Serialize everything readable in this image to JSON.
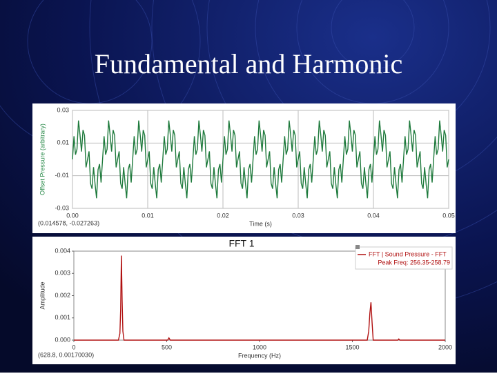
{
  "title": "Fundamental and Harmonic",
  "chart_data": [
    {
      "type": "line",
      "x_label": "Time (s)",
      "y_label": "Offset Pressure (arbitrary)",
      "status": "(0.014578, -0.027263)",
      "color": "#1e7a3c",
      "grid": true,
      "xlim": [
        0,
        0.05
      ],
      "ylim": [
        -0.03,
        0.03
      ],
      "xticks": [
        {
          "value": 0,
          "label": "0.00"
        },
        0.01,
        0.02,
        0.03,
        0.04,
        0.05
      ],
      "yticks": [
        -0.03,
        -0.01,
        0.01,
        0.03
      ],
      "x": [
        0,
        0.0002,
        0.0004,
        0.0006,
        0.0008,
        0.001,
        0.0012,
        0.0014,
        0.0016,
        0.0018,
        0.002,
        0.0022,
        0.0024,
        0.0026,
        0.0028,
        0.003,
        0.0032,
        0.0034,
        0.0036,
        0.0038,
        0.004,
        0.0042,
        0.0044,
        0.0046,
        0.0048,
        0.005,
        0.0052,
        0.0054,
        0.0056,
        0.0058,
        0.006,
        0.0062,
        0.0064,
        0.0066,
        0.0068,
        0.007,
        0.0072,
        0.0074,
        0.0076,
        0.0078,
        0.008,
        0.0082,
        0.0084,
        0.0086,
        0.0088,
        0.009,
        0.0092,
        0.0094,
        0.0096,
        0.0098,
        0.01,
        0.0102,
        0.0104,
        0.0106,
        0.0108,
        0.011,
        0.0112,
        0.0114,
        0.0116,
        0.0118,
        0.012,
        0.0122,
        0.0124,
        0.0126,
        0.0128,
        0.013,
        0.0132,
        0.0134,
        0.0136,
        0.0138,
        0.014,
        0.0142,
        0.0144,
        0.0146,
        0.0148,
        0.015,
        0.0152,
        0.0154,
        0.0156,
        0.0158,
        0.016,
        0.0162,
        0.0164,
        0.0166,
        0.0168,
        0.017,
        0.0172,
        0.0174,
        0.0176,
        0.0178,
        0.018,
        0.0182,
        0.0184,
        0.0186,
        0.0188,
        0.019,
        0.0192,
        0.0194,
        0.0196,
        0.0198,
        0.02,
        0.0202,
        0.0204,
        0.0206,
        0.0208,
        0.021,
        0.0212,
        0.0214,
        0.0216,
        0.0218,
        0.022,
        0.0222,
        0.0224,
        0.0226,
        0.0228,
        0.023,
        0.0232,
        0.0234,
        0.0236,
        0.0238,
        0.024,
        0.0242,
        0.0244,
        0.0246,
        0.0248,
        0.025,
        0.0252,
        0.0254,
        0.0256,
        0.0258,
        0.026,
        0.0262,
        0.0264,
        0.0266,
        0.0268,
        0.027,
        0.0272,
        0.0274,
        0.0276,
        0.0278,
        0.028,
        0.0282,
        0.0284,
        0.0286,
        0.0288,
        0.029,
        0.0292,
        0.0294,
        0.0296,
        0.0298,
        0.03,
        0.0302,
        0.0304,
        0.0306,
        0.0308,
        0.031,
        0.0312,
        0.0314,
        0.0316,
        0.0318,
        0.032,
        0.0322,
        0.0324,
        0.0326,
        0.0328,
        0.033,
        0.0332,
        0.0334,
        0.0336,
        0.0338,
        0.034,
        0.0342,
        0.0344,
        0.0346,
        0.0348,
        0.035,
        0.0352,
        0.0354,
        0.0356,
        0.0358,
        0.036,
        0.0362,
        0.0364,
        0.0366,
        0.0368,
        0.037,
        0.0372,
        0.0374,
        0.0376,
        0.0378,
        0.038,
        0.0382,
        0.0384,
        0.0386,
        0.0388,
        0.039,
        0.0392,
        0.0394,
        0.0396,
        0.0398,
        0.04,
        0.0402,
        0.0404,
        0.0406,
        0.0408,
        0.041,
        0.0412,
        0.0414,
        0.0416,
        0.0418,
        0.042,
        0.0422,
        0.0424,
        0.0426,
        0.0428,
        0.043,
        0.0432,
        0.0434,
        0.0436,
        0.0438,
        0.044,
        0.0442,
        0.0444,
        0.0446,
        0.0448,
        0.045,
        0.0452,
        0.0454,
        0.0456,
        0.0458,
        0.046,
        0.0462,
        0.0464,
        0.0466,
        0.0468,
        0.047,
        0.0472,
        0.0474,
        0.0476,
        0.0478,
        0.048,
        0.0482,
        0.0484,
        0.0486,
        0.0488,
        0.049,
        0.0492,
        0.0494,
        0.0496,
        0.0498,
        0.05
      ],
      "values": [
        0,
        0.0142,
        0.0029,
        0.0063,
        0.0238,
        0.015,
        0.0048,
        0.018,
        0.0147,
        -0.0049,
        0,
        0.0049,
        -0.0147,
        -0.018,
        -0.0048,
        -0.015,
        -0.0238,
        -0.0063,
        -0.0029,
        -0.0142,
        0,
        0.0142,
        0.0029,
        0.0063,
        0.0238,
        0.015,
        0.0048,
        0.018,
        0.0147,
        -0.0049,
        0,
        0.0049,
        -0.0147,
        -0.018,
        -0.0048,
        -0.015,
        -0.0238,
        -0.0063,
        -0.0029,
        -0.0142,
        0,
        0.0142,
        0.0029,
        0.0063,
        0.0238,
        0.015,
        0.0048,
        0.018,
        0.0147,
        -0.0049,
        0,
        0.0049,
        -0.0147,
        -0.018,
        -0.0048,
        -0.015,
        -0.0238,
        -0.0063,
        -0.0029,
        -0.0142,
        0,
        0.0142,
        0.0029,
        0.0063,
        0.0238,
        0.015,
        0.0048,
        0.018,
        0.0147,
        -0.0049,
        0,
        0.0049,
        -0.0147,
        -0.018,
        -0.0048,
        -0.015,
        -0.0238,
        -0.0063,
        -0.0029,
        -0.0142,
        0,
        0.0142,
        0.0029,
        0.0063,
        0.0238,
        0.015,
        0.0048,
        0.018,
        0.0147,
        -0.0049,
        0,
        0.0049,
        -0.0147,
        -0.018,
        -0.0048,
        -0.015,
        -0.0238,
        -0.0063,
        -0.0029,
        -0.0142,
        0,
        0.0142,
        0.0029,
        0.0063,
        0.0238,
        0.015,
        0.0048,
        0.018,
        0.0147,
        -0.0049,
        0,
        0.0049,
        -0.0147,
        -0.018,
        -0.0048,
        -0.015,
        -0.0238,
        -0.0063,
        -0.0029,
        -0.0142,
        0,
        0.0142,
        0.0029,
        0.0063,
        0.0238,
        0.015,
        0.0048,
        0.018,
        0.0147,
        -0.0049,
        0,
        0.0049,
        -0.0147,
        -0.018,
        -0.0048,
        -0.015,
        -0.0238,
        -0.0063,
        -0.0029,
        -0.0142,
        0,
        0.0142,
        0.0029,
        0.0063,
        0.0238,
        0.015,
        0.0048,
        0.018,
        0.0147,
        -0.0049,
        0,
        0.0049,
        -0.0147,
        -0.018,
        -0.0048,
        -0.015,
        -0.0238,
        -0.0063,
        -0.0029,
        -0.0142,
        0,
        0.0142,
        0.0029,
        0.0063,
        0.0238,
        0.015,
        0.0048,
        0.018,
        0.0147,
        -0.0049,
        0,
        0.0049,
        -0.0147,
        -0.018,
        -0.0048,
        -0.015,
        -0.0238,
        -0.0063,
        -0.0029,
        -0.0142,
        0,
        0.0142,
        0.0029,
        0.0063,
        0.0238,
        0.015,
        0.0048,
        0.018,
        0.0147,
        -0.0049,
        0,
        0.0049,
        -0.0147,
        -0.018,
        -0.0048,
        -0.015,
        -0.0238,
        -0.0063,
        -0.0029,
        -0.0142,
        0,
        0.0142,
        0.0029,
        0.0063,
        0.0238,
        0.015,
        0.0048,
        0.018,
        0.0147,
        -0.0049,
        0,
        0.0049,
        -0.0147,
        -0.018,
        -0.0048,
        -0.015,
        -0.0238,
        -0.0063,
        -0.0029,
        -0.0142,
        0,
        0.0142,
        0.0029,
        0.0063,
        0.0238,
        0.015,
        0.0048,
        0.018,
        0.0147,
        -0.0049,
        0,
        0.0049,
        -0.0147,
        -0.018,
        -0.0048,
        -0.015,
        -0.0238,
        -0.0063,
        -0.0029,
        -0.0142,
        0,
        0.0142,
        0.0029,
        0.0063,
        0.0238,
        0.015,
        0.0048,
        0.018,
        0.0147,
        -0.0049,
        0
      ]
    },
    {
      "type": "line",
      "title": "FFT 1",
      "x_label": "Frequency (Hz)",
      "y_label": "Amplitude",
      "status": "(628.8, 0.00170030)",
      "peak_label": "Peak Freq: 256.35-258.79",
      "grid": false,
      "xlim": [
        0,
        2000
      ],
      "ylim": [
        0,
        0.004
      ],
      "xticks": [
        0,
        500,
        1000,
        1500,
        2000
      ],
      "yticks": [
        {
          "value": 0,
          "label": "0.000"
        },
        0.001,
        0.002,
        0.003,
        0.004
      ],
      "x": [
        0,
        240,
        248,
        252,
        256,
        260,
        264,
        270,
        505,
        512,
        519,
        1580,
        1588,
        1594,
        1600,
        1606,
        1612,
        1745,
        1750,
        1755,
        2000
      ],
      "series": [
        {
          "name": "FFT | Sound Pressure - FFT",
          "color": "#b01010",
          "values": [
            0,
            0,
            0.0003,
            0.0014,
            0.0038,
            0.0018,
            0.0004,
            0,
            0,
            0.0001,
            0,
            0,
            0.0004,
            0.0012,
            0.0017,
            0.0008,
            0,
            0,
            5e-05,
            0,
            0
          ]
        }
      ]
    }
  ]
}
